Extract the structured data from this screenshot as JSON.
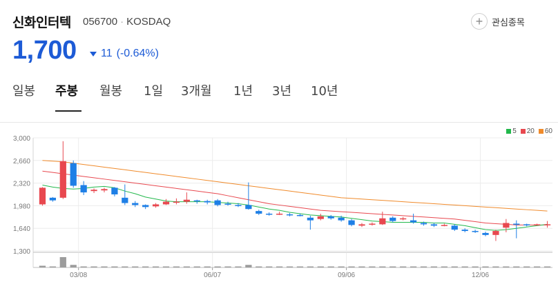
{
  "stock": {
    "name": "신화인터텍",
    "code": "056700",
    "market": "KOSDAQ",
    "price": "1,700",
    "change": "11",
    "change_pct": "(-0.64%)",
    "direction": "down"
  },
  "watchlist": {
    "label": "관심종목",
    "icon": "plus-icon"
  },
  "tabs": [
    {
      "label": "일봉",
      "active": false
    },
    {
      "label": "주봉",
      "active": true
    },
    {
      "label": "월봉",
      "active": false
    },
    {
      "label": "1일",
      "active": false
    },
    {
      "label": "3개월",
      "active": false
    },
    {
      "label": "1년",
      "active": false
    },
    {
      "label": "3년",
      "active": false
    },
    {
      "label": "10년",
      "active": false
    }
  ],
  "legend": [
    {
      "label": "5",
      "color": "#22b84b"
    },
    {
      "label": "20",
      "color": "#e8484f"
    },
    {
      "label": "60",
      "color": "#f08a2a"
    }
  ],
  "colors": {
    "up": "#e8484f",
    "down": "#1e7fe6",
    "price": "#1d5bd6",
    "volume": "#9c9c9c"
  },
  "chart_data": {
    "type": "candlestick",
    "period": "weekly",
    "ylim": [
      1300,
      3000
    ],
    "yticks": [
      "3,000",
      "2,660",
      "2,320",
      "1,980",
      "1,640",
      "1,300"
    ],
    "ytick_values": [
      3000,
      2660,
      2320,
      1980,
      1640,
      1300
    ],
    "xticks": [
      {
        "label": "03/08",
        "index": 4
      },
      {
        "label": "06/07",
        "index": 17
      },
      {
        "label": "09/06",
        "index": 30
      },
      {
        "label": "12/06",
        "index": 43
      }
    ],
    "candles": [
      [
        2000,
        2250,
        2260,
        1980,
        "up"
      ],
      [
        2100,
        2060,
        2110,
        2040,
        "down"
      ],
      [
        2100,
        2650,
        2950,
        2080,
        "up"
      ],
      [
        2620,
        2280,
        2660,
        2250,
        "down"
      ],
      [
        2290,
        2180,
        2350,
        2140,
        "down"
      ],
      [
        2200,
        2220,
        2240,
        2170,
        "up"
      ],
      [
        2210,
        2230,
        2250,
        2180,
        "up"
      ],
      [
        2250,
        2150,
        2260,
        2120,
        "down"
      ],
      [
        2100,
        2020,
        2300,
        1990,
        "down"
      ],
      [
        2020,
        1990,
        2050,
        1960,
        "down"
      ],
      [
        1990,
        1960,
        2000,
        1930,
        "down"
      ],
      [
        1970,
        2000,
        2020,
        1950,
        "up"
      ],
      [
        2000,
        2040,
        2080,
        1990,
        "up"
      ],
      [
        2030,
        2040,
        2090,
        2000,
        "up"
      ],
      [
        2040,
        2070,
        2180,
        2010,
        "up"
      ],
      [
        2060,
        2050,
        2070,
        2010,
        "down"
      ],
      [
        2050,
        2030,
        2070,
        2000,
        "down"
      ],
      [
        2060,
        1990,
        2080,
        1970,
        "down"
      ],
      [
        2010,
        2000,
        2040,
        1980,
        "down"
      ],
      [
        1990,
        1980,
        2020,
        1960,
        "down"
      ],
      [
        1990,
        1930,
        2330,
        1920,
        "down"
      ],
      [
        1900,
        1860,
        1920,
        1840,
        "down"
      ],
      [
        1860,
        1850,
        1880,
        1830,
        "down"
      ],
      [
        1850,
        1860,
        1890,
        1840,
        "up"
      ],
      [
        1850,
        1840,
        1870,
        1820,
        "down"
      ],
      [
        1840,
        1830,
        1860,
        1820,
        "down"
      ],
      [
        1800,
        1760,
        1830,
        1620,
        "down"
      ],
      [
        1780,
        1820,
        1860,
        1760,
        "up"
      ],
      [
        1820,
        1790,
        1840,
        1770,
        "down"
      ],
      [
        1800,
        1760,
        1830,
        1740,
        "down"
      ],
      [
        1760,
        1690,
        1780,
        1670,
        "down"
      ],
      [
        1680,
        1700,
        1720,
        1660,
        "up"
      ],
      [
        1700,
        1710,
        1730,
        1680,
        "up"
      ],
      [
        1700,
        1790,
        1890,
        1690,
        "up"
      ],
      [
        1800,
        1750,
        1820,
        1730,
        "down"
      ],
      [
        1780,
        1790,
        1810,
        1760,
        "up"
      ],
      [
        1760,
        1730,
        1860,
        1710,
        "down"
      ],
      [
        1720,
        1700,
        1740,
        1680,
        "down"
      ],
      [
        1700,
        1680,
        1720,
        1660,
        "down"
      ],
      [
        1680,
        1690,
        1710,
        1670,
        "up"
      ],
      [
        1680,
        1620,
        1700,
        1600,
        "down"
      ],
      [
        1620,
        1600,
        1640,
        1580,
        "down"
      ],
      [
        1600,
        1590,
        1620,
        1570,
        "down"
      ],
      [
        1570,
        1540,
        1590,
        1520,
        "down"
      ],
      [
        1540,
        1600,
        1620,
        1450,
        "up"
      ],
      [
        1650,
        1720,
        1780,
        1580,
        "up"
      ],
      [
        1710,
        1700,
        1760,
        1490,
        "down"
      ],
      [
        1700,
        1690,
        1710,
        1670,
        "down"
      ],
      [
        1690,
        1700,
        1710,
        1680,
        "up"
      ],
      [
        1690,
        1700,
        1750,
        1650,
        "up"
      ]
    ],
    "volume": [
      2,
      1,
      12,
      3,
      1,
      0.5,
      0.5,
      0.5,
      0.5,
      0.5,
      0.5,
      0.5,
      0.5,
      0.5,
      0.5,
      0.5,
      0.5,
      0.5,
      0.5,
      0.5,
      3,
      0.5,
      0.5,
      0.5,
      0.5,
      0.5,
      0.5,
      0.5,
      0.5,
      0.5,
      0.5,
      0.5,
      0.5,
      0.5,
      0.5,
      0.5,
      0.5,
      0.5,
      0.5,
      0.5,
      1,
      0.5,
      0.5,
      0.5,
      0.8,
      0.5,
      0.5,
      0.5,
      0.5,
      0.5
    ],
    "ma5": [
      2290,
      2260,
      2240,
      2230,
      2240,
      2260,
      2270,
      2250,
      2200,
      2160,
      2110,
      2080,
      2050,
      2040,
      2040,
      2040,
      2040,
      2030,
      2020,
      2010,
      1990,
      1960,
      1930,
      1910,
      1880,
      1860,
      1840,
      1830,
      1820,
      1810,
      1790,
      1770,
      1750,
      1740,
      1730,
      1730,
      1730,
      1730,
      1720,
      1720,
      1700,
      1680,
      1650,
      1620,
      1610,
      1620,
      1640,
      1660,
      1680,
      1700
    ],
    "ma20": [
      2500,
      2480,
      2460,
      2440,
      2420,
      2400,
      2380,
      2360,
      2340,
      2320,
      2300,
      2280,
      2260,
      2240,
      2220,
      2200,
      2180,
      2160,
      2130,
      2100,
      2070,
      2040,
      2010,
      1990,
      1970,
      1950,
      1930,
      1910,
      1900,
      1890,
      1880,
      1870,
      1860,
      1850,
      1840,
      1830,
      1820,
      1810,
      1800,
      1790,
      1780,
      1760,
      1740,
      1720,
      1710,
      1700,
      1690,
      1690,
      1690,
      1690
    ],
    "ma60": [
      2660,
      2650,
      2640,
      2620,
      2600,
      2580,
      2560,
      2540,
      2520,
      2500,
      2480,
      2460,
      2440,
      2420,
      2400,
      2380,
      2360,
      2340,
      2320,
      2300,
      2280,
      2260,
      2240,
      2220,
      2200,
      2180,
      2160,
      2140,
      2120,
      2100,
      2090,
      2080,
      2070,
      2060,
      2050,
      2040,
      2030,
      2020,
      2010,
      2000,
      1990,
      1980,
      1970,
      1960,
      1950,
      1940,
      1930,
      1920,
      1910,
      1900
    ]
  }
}
